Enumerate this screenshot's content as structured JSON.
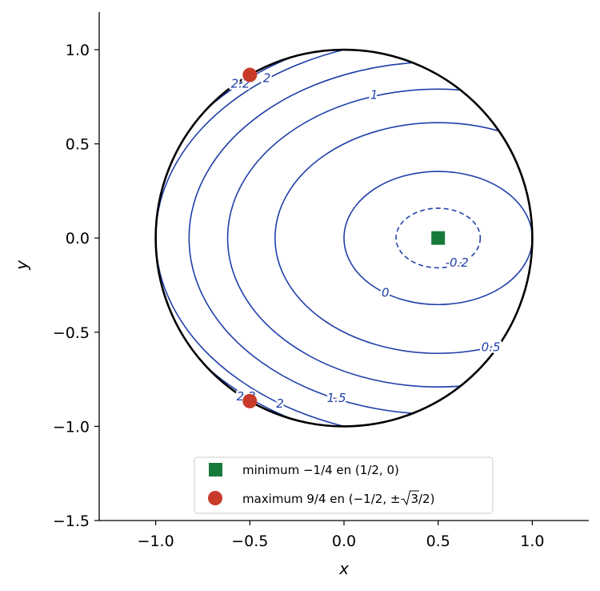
{
  "chart_data": {
    "type": "contour",
    "xlabel": "x",
    "ylabel": "y",
    "xlim": [
      -1.3,
      1.3
    ],
    "ylim": [
      -1.5,
      1.2
    ],
    "x_ticks": [
      -1.0,
      -0.5,
      0.0,
      0.5,
      1.0
    ],
    "x_tick_labels": [
      "−1.0",
      "−0.5",
      "0.0",
      "0.5",
      "1.0"
    ],
    "y_ticks": [
      1.0,
      0.5,
      0.0,
      -0.5,
      -1.0,
      -1.5
    ],
    "y_tick_labels": [
      "1.0",
      "0.5",
      "0.0",
      "−0.5",
      "−1.0",
      "−1.5"
    ],
    "grid": false,
    "function": "f(x,y) = x^2 + 2y^2 - x",
    "domain_boundary": {
      "center": [
        0,
        0
      ],
      "radius": 1
    },
    "contour_levels": [
      {
        "value": -0.2,
        "label": "-0.2",
        "dashed": true
      },
      {
        "value": 0,
        "label": "0",
        "dashed": false
      },
      {
        "value": 0.5,
        "label": "0.5",
        "dashed": false
      },
      {
        "value": 1,
        "label": "1",
        "dashed": false
      },
      {
        "value": 1.5,
        "label": "1.5",
        "dashed": false
      },
      {
        "value": 2,
        "label": "2",
        "dashed": false
      },
      {
        "value": 2.2,
        "label": "2.2",
        "dashed": false
      }
    ],
    "contour_label_points": [
      {
        "text": "1",
        "x": 0.16,
        "y": 0.76
      },
      {
        "text": "2",
        "x": -0.41,
        "y": 0.85
      },
      {
        "text": "2.2",
        "x": -0.55,
        "y": 0.82
      },
      {
        "text": "-0.2",
        "x": 0.6,
        "y": -0.13
      },
      {
        "text": "0",
        "x": 0.22,
        "y": -0.29
      },
      {
        "text": "0.5",
        "x": 0.78,
        "y": -0.58
      },
      {
        "text": "1.5",
        "x": -0.04,
        "y": -0.85
      },
      {
        "text": "2",
        "x": -0.34,
        "y": -0.88
      },
      {
        "text": "2.2",
        "x": -0.52,
        "y": -0.84
      }
    ],
    "points": [
      {
        "name": "minimum −1/4 en (1/2, 0)",
        "marker": "square",
        "color": "#187a3a",
        "coords": [
          [
            0.5,
            0
          ]
        ]
      },
      {
        "name": "maximum 9/4 en (−1/2, ±√3/2)",
        "marker": "circle",
        "color": "#c83a2a",
        "coords": [
          [
            -0.5,
            0.866
          ],
          [
            -0.5,
            -0.866
          ]
        ]
      }
    ],
    "legend": {
      "position": "bottom-center",
      "entries": [
        {
          "marker": "square",
          "color": "#187a3a",
          "text": "minimum −1/4 en (1/2, 0)"
        },
        {
          "marker": "circle",
          "color": "#c83a2a",
          "text_before": "maximum 9/4 en (−1/2, ±",
          "sqrt_arg": "3",
          "text_after": "/2)"
        }
      ]
    },
    "colors": {
      "contour": "#1f3fa8",
      "boundary": "#000000",
      "minimum": "#187a3a",
      "maximum": "#c83a2a"
    }
  }
}
